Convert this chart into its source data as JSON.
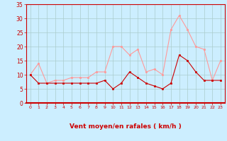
{
  "hours": [
    0,
    1,
    2,
    3,
    4,
    5,
    6,
    7,
    8,
    9,
    10,
    11,
    12,
    13,
    14,
    15,
    16,
    17,
    18,
    19,
    20,
    21,
    22,
    23
  ],
  "wind_avg": [
    10,
    7,
    7,
    7,
    7,
    7,
    7,
    7,
    7,
    8,
    5,
    7,
    11,
    9,
    7,
    6,
    5,
    7,
    17,
    15,
    11,
    8,
    8,
    8
  ],
  "wind_gust": [
    10,
    14,
    7,
    8,
    8,
    9,
    9,
    9,
    11,
    11,
    20,
    20,
    17,
    19,
    11,
    12,
    10,
    26,
    31,
    26,
    20,
    19,
    8,
    15
  ],
  "bg_color": "#cceeff",
  "grid_color": "#aacccc",
  "line_avg_color": "#cc0000",
  "line_gust_color": "#ff9999",
  "xlabel": "Vent moyen/en rafales ( km/h )",
  "xlabel_color": "#cc0000",
  "tick_color": "#cc0000",
  "spine_color": "#cc0000",
  "ylim": [
    0,
    35
  ],
  "yticks": [
    0,
    5,
    10,
    15,
    20,
    25,
    30,
    35
  ],
  "xlim": [
    -0.5,
    23.5
  ]
}
